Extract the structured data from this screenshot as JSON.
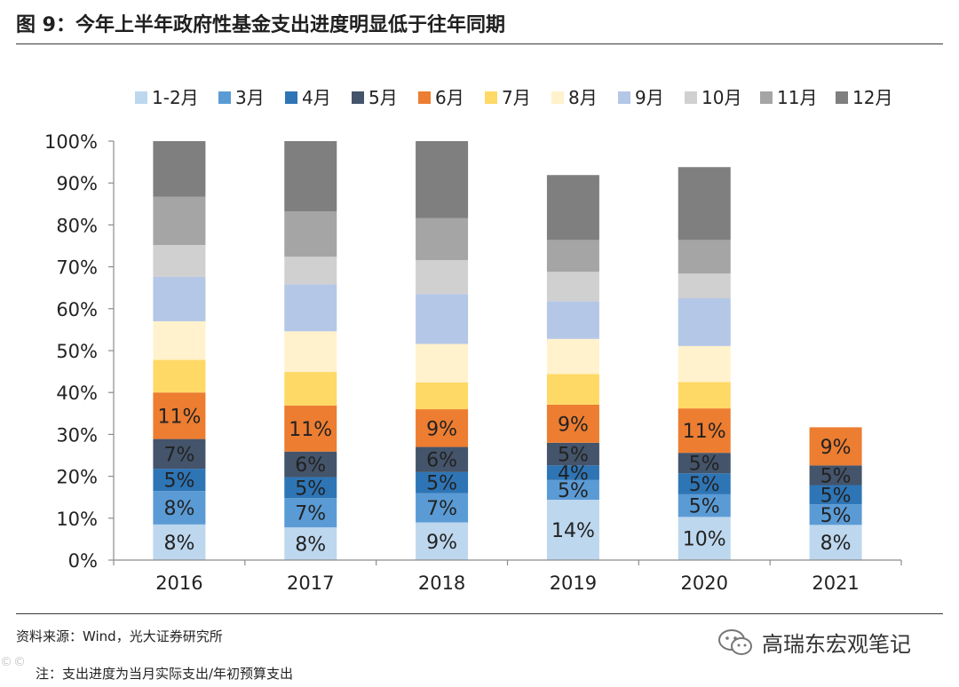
{
  "header": {
    "title": "图 9：今年上半年政府性基金支出进度明显低于往年同期"
  },
  "footer": {
    "source": "资料来源：Wind，光大证券研究所",
    "note": "注：支出进度为当月实际支出/年初预算支出",
    "brand": "高瑞东宏观笔记",
    "watermark_left": "©©"
  },
  "chart_data": {
    "type": "bar",
    "stacked": true,
    "title": "今年上半年政府性基金支出进度明显低于往年同期",
    "xlabel": "",
    "ylabel": "",
    "ylim": [
      0,
      100
    ],
    "yticks": [
      "0%",
      "10%",
      "20%",
      "30%",
      "40%",
      "50%",
      "60%",
      "70%",
      "80%",
      "90%",
      "100%"
    ],
    "categories": [
      "2016",
      "2017",
      "2018",
      "2019",
      "2020",
      "2021"
    ],
    "legend_position": "top",
    "series": [
      {
        "name": "1-2月",
        "color": "#bdd7ee",
        "values": [
          8.5,
          7.8,
          9.0,
          14.4,
          10.3,
          8.4
        ],
        "labels": [
          "8%",
          "8%",
          "9%",
          "14%",
          "10%",
          "8%"
        ]
      },
      {
        "name": "3月",
        "color": "#5b9bd5",
        "values": [
          8.0,
          7.0,
          7.0,
          4.7,
          5.4,
          4.9
        ],
        "labels": [
          "8%",
          "7%",
          "7%",
          "5%",
          "5%",
          "5%"
        ]
      },
      {
        "name": "4月",
        "color": "#2e75b6",
        "values": [
          5.3,
          5.0,
          5.0,
          3.5,
          5.0,
          4.6
        ],
        "labels": [
          "5%",
          "5%",
          "5%",
          "4%",
          "5%",
          "5%"
        ]
      },
      {
        "name": "5月",
        "color": "#44546a",
        "values": [
          7.1,
          6.1,
          6.0,
          5.4,
          4.9,
          4.7
        ],
        "labels": [
          "7%",
          "6%",
          "6%",
          "5%",
          "5%",
          "5%"
        ]
      },
      {
        "name": "6月",
        "color": "#ed7d31",
        "values": [
          11.1,
          11.0,
          9.0,
          9.1,
          10.6,
          9.1
        ],
        "labels": [
          "11%",
          "11%",
          "9%",
          "9%",
          "11%",
          "9%"
        ]
      },
      {
        "name": "7月",
        "color": "#ffd966",
        "values": [
          7.8,
          8.0,
          6.4,
          7.3,
          6.3,
          0
        ]
      },
      {
        "name": "8月",
        "color": "#fff2cc",
        "values": [
          9.2,
          9.7,
          9.2,
          8.4,
          8.6,
          0
        ]
      },
      {
        "name": "9月",
        "color": "#b4c7e7",
        "values": [
          10.6,
          11.2,
          11.9,
          9.0,
          11.4,
          0
        ]
      },
      {
        "name": "10月",
        "color": "#d0d0d0",
        "values": [
          7.6,
          6.6,
          8.1,
          7.0,
          5.9,
          0
        ]
      },
      {
        "name": "11月",
        "color": "#a5a5a5",
        "values": [
          11.5,
          10.8,
          10.0,
          7.6,
          8.0,
          0
        ]
      },
      {
        "name": "12月",
        "color": "#7f7f7f",
        "values": [
          13.3,
          16.8,
          18.4,
          15.5,
          17.4,
          0
        ]
      }
    ]
  }
}
